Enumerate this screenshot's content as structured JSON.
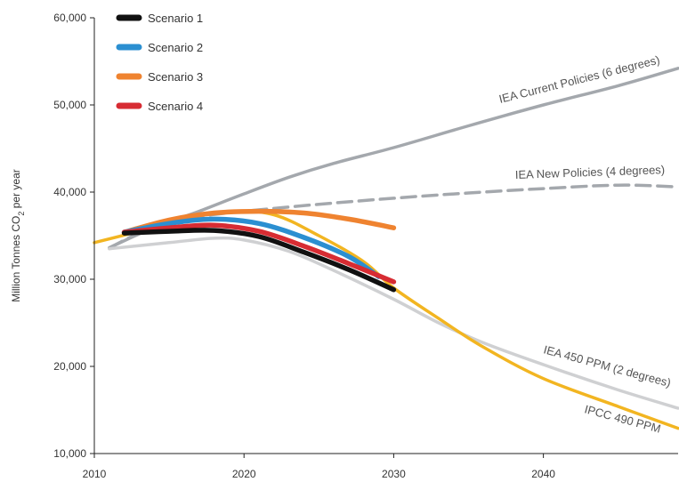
{
  "chart_data": {
    "type": "line",
    "title": "",
    "xlabel": "",
    "ylabel": "Million Tonnes CO",
    "ylabel_sub": "2",
    "ylabel_tail": " per year",
    "xlim": [
      2010,
      2049
    ],
    "ylim": [
      10000,
      60000
    ],
    "x_ticks": [
      2010,
      2020,
      2030,
      2040
    ],
    "x_tick_labels": [
      "2010",
      "2020",
      "2030",
      "2040"
    ],
    "y_ticks": [
      10000,
      20000,
      30000,
      40000,
      50000,
      60000
    ],
    "y_tick_labels": [
      "10,000",
      "20,000",
      "30,000",
      "40,000",
      "50,000",
      "60,000"
    ],
    "grid": false,
    "legend_position": "top-left",
    "legend": [
      {
        "name": "Scenario 1",
        "color": "#111111"
      },
      {
        "name": "Scenario 2",
        "color": "#2b8fd1"
      },
      {
        "name": "Scenario 3",
        "color": "#ef8330"
      },
      {
        "name": "Scenario 4",
        "color": "#d72c33"
      }
    ],
    "series": [
      {
        "label": "IEA Current Policies (6 degrees)",
        "color": "#a4a8ad",
        "dash": false,
        "width": 3.5,
        "x": [
          2011,
          2013,
          2015,
          2017,
          2020,
          2023,
          2026,
          2030,
          2035,
          2040,
          2045,
          2049
        ],
        "y": [
          33600,
          35200,
          36600,
          37800,
          39800,
          41700,
          43300,
          45100,
          47600,
          50000,
          52200,
          54200
        ]
      },
      {
        "label": "IEA New Policies (4 degrees)",
        "color": "#a4a8ad",
        "dash": true,
        "width": 3.5,
        "x": [
          2011,
          2013,
          2015,
          2017,
          2020,
          2025,
          2030,
          2035,
          2040,
          2045,
          2049
        ],
        "y": [
          33600,
          35300,
          36500,
          37200,
          37800,
          38600,
          39300,
          39900,
          40400,
          40800,
          40600
        ]
      },
      {
        "label": "IEA 450 PPM (2 degrees)",
        "color": "#cfd0d2",
        "dash": false,
        "width": 3.5,
        "x": [
          2011,
          2015,
          2018,
          2020,
          2023,
          2026,
          2030,
          2033,
          2036,
          2040,
          2045,
          2049
        ],
        "y": [
          33500,
          34200,
          34700,
          34500,
          33200,
          31000,
          27700,
          25000,
          22700,
          20200,
          17300,
          15200
        ]
      },
      {
        "label": "IPCC 490 PPM",
        "color": "#f2b521",
        "dash": false,
        "width": 3.5,
        "x": [
          2010,
          2013,
          2016,
          2019,
          2022,
          2025,
          2028,
          2030,
          2033,
          2036,
          2040,
          2045,
          2049
        ],
        "y": [
          34200,
          35500,
          36900,
          37800,
          37400,
          35000,
          32000,
          29000,
          25500,
          22200,
          18600,
          15400,
          12900
        ]
      },
      {
        "label": "Scenario 3",
        "color": "#ef8330",
        "dash": false,
        "width": 5.5,
        "x": [
          2012,
          2015,
          2018,
          2021,
          2024,
          2027,
          2030
        ],
        "y": [
          35400,
          36800,
          37600,
          37800,
          37600,
          36900,
          35900
        ]
      },
      {
        "label": "Scenario 2",
        "color": "#2b8fd1",
        "dash": false,
        "width": 5.5,
        "x": [
          2012,
          2015,
          2018,
          2021,
          2024,
          2027,
          2029
        ],
        "y": [
          35400,
          36400,
          36900,
          36400,
          34800,
          32600,
          30300
        ]
      },
      {
        "label": "Scenario 4",
        "color": "#d72c33",
        "dash": false,
        "width": 5.5,
        "x": [
          2012,
          2015,
          2018,
          2021,
          2024,
          2027,
          2030
        ],
        "y": [
          35400,
          35900,
          36200,
          35500,
          33800,
          31800,
          29700
        ]
      },
      {
        "label": "Scenario 1",
        "color": "#111111",
        "dash": false,
        "width": 5.5,
        "x": [
          2012,
          2015,
          2018,
          2021,
          2024,
          2027,
          2030
        ],
        "y": [
          35300,
          35500,
          35600,
          34900,
          33100,
          31100,
          28800
        ]
      }
    ],
    "annotations": [
      {
        "text": "IEA Current Policies (6 degrees)",
        "series": "IEA Current Policies (6 degrees)"
      },
      {
        "text": "IEA New Policies (4 degrees)",
        "series": "IEA New Policies (4 degrees)"
      },
      {
        "text": "IEA 450 PPM (2 degrees)",
        "series": "IEA 450 PPM (2 degrees)"
      },
      {
        "text": "IPCC 490 PPM",
        "series": "IPCC 490 PPM"
      }
    ]
  }
}
